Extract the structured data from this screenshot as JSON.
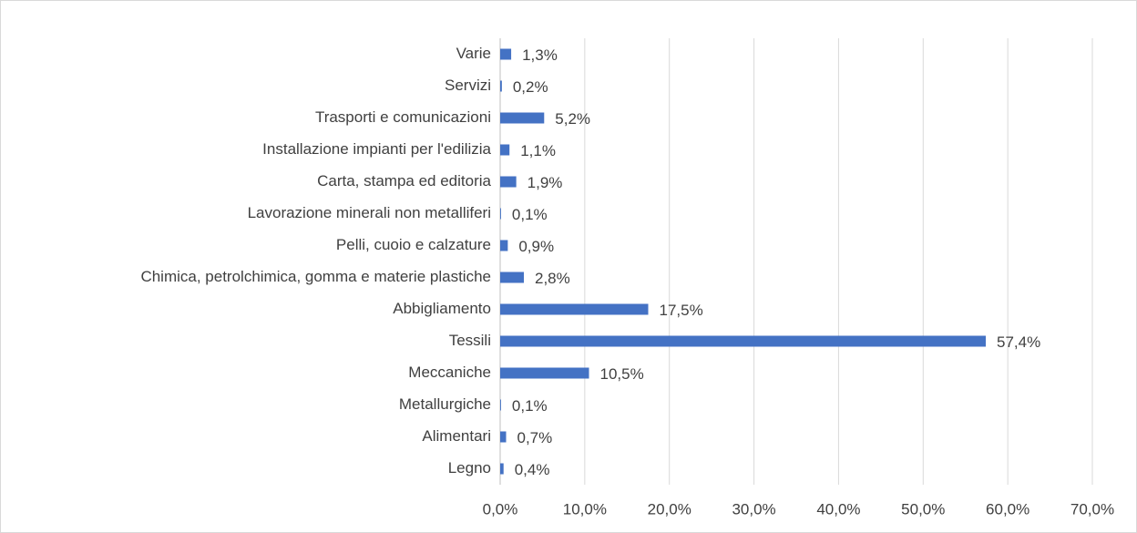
{
  "chart_data": {
    "type": "bar",
    "orientation": "horizontal",
    "categories": [
      "Legno",
      "Alimentari",
      "Metallurgiche",
      "Meccaniche",
      "Tessili",
      "Abbigliamento",
      "Chimica, petrolchimica, gomma e materie plastiche",
      "Pelli, cuoio e calzature",
      "Lavorazione minerali non metalliferi",
      "Carta, stampa ed editoria",
      "Installazione impianti per l'edilizia",
      "Trasporti e comunicazioni",
      "Servizi",
      "Varie"
    ],
    "values": [
      0.4,
      0.7,
      0.1,
      10.5,
      57.4,
      17.5,
      2.8,
      0.9,
      0.1,
      1.9,
      1.1,
      5.2,
      0.2,
      1.3
    ],
    "value_labels": [
      "0,4%",
      "0,7%",
      "0,1%",
      "10,5%",
      "57,4%",
      "17,5%",
      "2,8%",
      "0,9%",
      "0,1%",
      "1,9%",
      "1,1%",
      "5,2%",
      "0,2%",
      "1,3%"
    ],
    "color": "#4472c4",
    "xlim": [
      0,
      70
    ],
    "xticks": [
      {
        "value": 0,
        "label": "0,0%"
      },
      {
        "value": 10,
        "label": "10,0%"
      },
      {
        "value": 20,
        "label": "20,0%"
      },
      {
        "value": 30,
        "label": "30,0%"
      },
      {
        "value": 40,
        "label": "40,0%"
      },
      {
        "value": 50,
        "label": "50,0%"
      },
      {
        "value": 60,
        "label": "60,0%"
      },
      {
        "value": 70,
        "label": "70,0%"
      }
    ],
    "grid": true
  }
}
